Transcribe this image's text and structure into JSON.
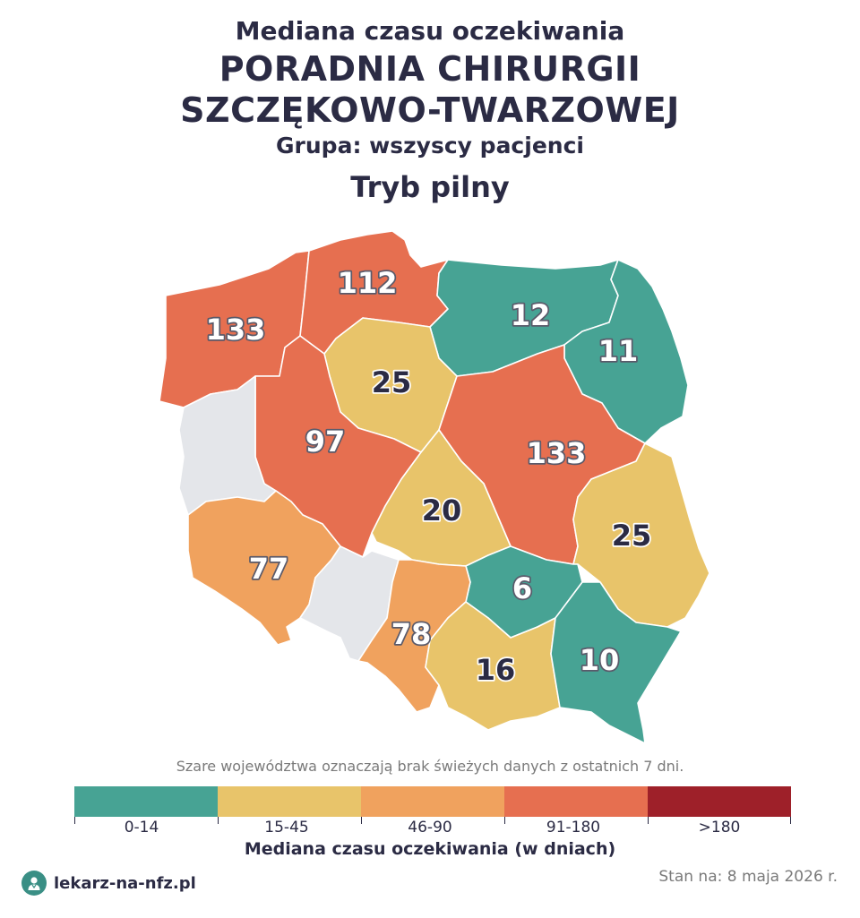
{
  "title": {
    "line1": "Mediana czasu oczekiwania",
    "line2": "PORADNIA CHIRURGII",
    "line3": "SZCZĘKOWO-TWARZOWEJ",
    "group": "Grupa: wszyscy pacjenci",
    "mode": "Tryb pilny"
  },
  "colors": {
    "range_0_14": "#47a394",
    "range_15_45": "#e8c46a",
    "range_46_90": "#f0a25e",
    "range_91_180": "#e66f50",
    "range_180_plus": "#9e2029",
    "no_data": "#e4e6ea"
  },
  "regions": [
    {
      "name": "zachodniopomorskie",
      "value": "133",
      "range": "91-180"
    },
    {
      "name": "pomorskie",
      "value": "112",
      "range": "91-180"
    },
    {
      "name": "warmińsko-mazurskie",
      "value": "12",
      "range": "0-14"
    },
    {
      "name": "podlaskie",
      "value": "11",
      "range": "0-14"
    },
    {
      "name": "kujawsko-pomorskie",
      "value": "25",
      "range": "15-45"
    },
    {
      "name": "wielkopolskie",
      "value": "97",
      "range": "91-180"
    },
    {
      "name": "mazowieckie",
      "value": "133",
      "range": "91-180"
    },
    {
      "name": "lubuskie",
      "value": "",
      "range": "brak danych"
    },
    {
      "name": "łódzkie",
      "value": "20",
      "range": "15-45"
    },
    {
      "name": "lubelskie",
      "value": "25",
      "range": "15-45"
    },
    {
      "name": "dolnośląskie",
      "value": "77",
      "range": "46-90"
    },
    {
      "name": "opolskie",
      "value": "",
      "range": "brak danych"
    },
    {
      "name": "świętokrzyskie",
      "value": "6",
      "range": "0-14"
    },
    {
      "name": "śląskie",
      "value": "78",
      "range": "46-90"
    },
    {
      "name": "małopolskie",
      "value": "16",
      "range": "15-45"
    },
    {
      "name": "podkarpackie",
      "value": "10",
      "range": "0-14"
    }
  ],
  "note": "Szare województwa oznaczają brak świeżych danych z ostatnich 7 dni.",
  "legend": {
    "labels": [
      "0-14",
      "15-45",
      "46-90",
      "91-180",
      ">180"
    ],
    "title": "Mediana czasu oczekiwania (w dniach)"
  },
  "footer": {
    "logo_text": "lekarz-na-nfz.pl",
    "logo_icon": "doctor-icon",
    "date": "Stan na: 8 maja 2026 r."
  }
}
